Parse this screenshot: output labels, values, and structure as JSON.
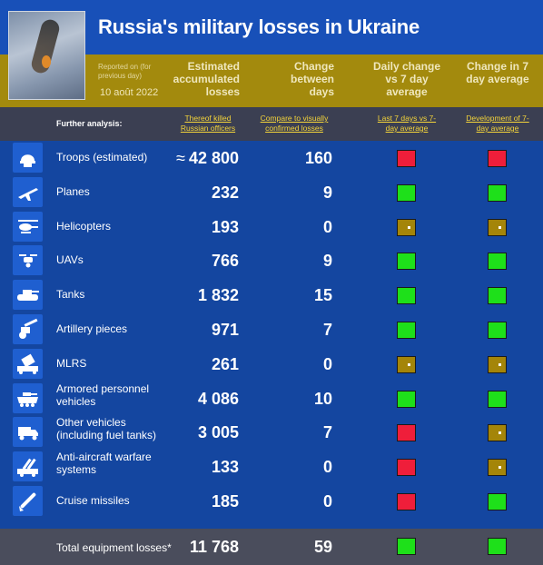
{
  "header": {
    "title": "Russia's military losses in Ukraine",
    "reported_on": "Reported on (for previous day)",
    "report_date": "10 août 2022",
    "col_estimated": "Estimated accumulated losses",
    "col_change": "Change between days",
    "col_daily": "Daily change vs 7 day average",
    "col_change7": "Change in 7 day average"
  },
  "subheader": {
    "label": "Further analysis:",
    "link_officers": "Thereof killed Russian officers",
    "link_compare": "Compare to visually confirmed losses",
    "link_last7": "Last 7 days vs 7-day average",
    "link_dev": "Development of 7-day average"
  },
  "colors": {
    "red": "#ef1e3a",
    "green": "#1ee01a",
    "neutral": "#a48509"
  },
  "chart_data": {
    "type": "table",
    "columns": [
      "Estimated accumulated losses",
      "Change between days",
      "Daily change vs 7 day average",
      "Change in 7 day average"
    ],
    "rows": [
      {
        "icon": "helmet-icon",
        "label": "Troops (estimated)",
        "approx": "≈",
        "value": "42 800",
        "change": "160",
        "daily": "red",
        "avg": "red"
      },
      {
        "icon": "plane-icon",
        "label": "Planes",
        "value": "232",
        "change": "9",
        "daily": "green",
        "avg": "green"
      },
      {
        "icon": "helicopter-icon",
        "label": "Helicopters",
        "value": "193",
        "change": "0",
        "daily": "neutral",
        "avg": "neutral"
      },
      {
        "icon": "drone-icon",
        "label": "UAVs",
        "value": "766",
        "change": "9",
        "daily": "green",
        "avg": "green"
      },
      {
        "icon": "tank-icon",
        "label": "Tanks",
        "value": "1 832",
        "change": "15",
        "daily": "green",
        "avg": "green"
      },
      {
        "icon": "artillery-icon",
        "label": "Artillery pieces",
        "value": "971",
        "change": "7",
        "daily": "green",
        "avg": "green"
      },
      {
        "icon": "mlrs-icon",
        "label": "MLRS",
        "value": "261",
        "change": "0",
        "daily": "neutral",
        "avg": "neutral"
      },
      {
        "icon": "apc-icon",
        "label": "Armored personnel vehicles",
        "value": "4 086",
        "change": "10",
        "daily": "green",
        "avg": "green"
      },
      {
        "icon": "truck-icon",
        "label": "Other vehicles (including fuel tanks)",
        "value": "3 005",
        "change": "7",
        "daily": "red",
        "avg": "neutral"
      },
      {
        "icon": "anti-aircraft-icon",
        "label": "Anti-aircraft warfare systems",
        "value": "133",
        "change": "0",
        "daily": "red",
        "avg": "neutral"
      },
      {
        "icon": "missile-icon",
        "label": "Cruise missiles",
        "value": "185",
        "change": "0",
        "daily": "red",
        "avg": "green"
      }
    ],
    "total": {
      "label": "Total equipment losses*",
      "value": "11 768",
      "change": "59",
      "daily": "green",
      "avg": "green"
    }
  }
}
